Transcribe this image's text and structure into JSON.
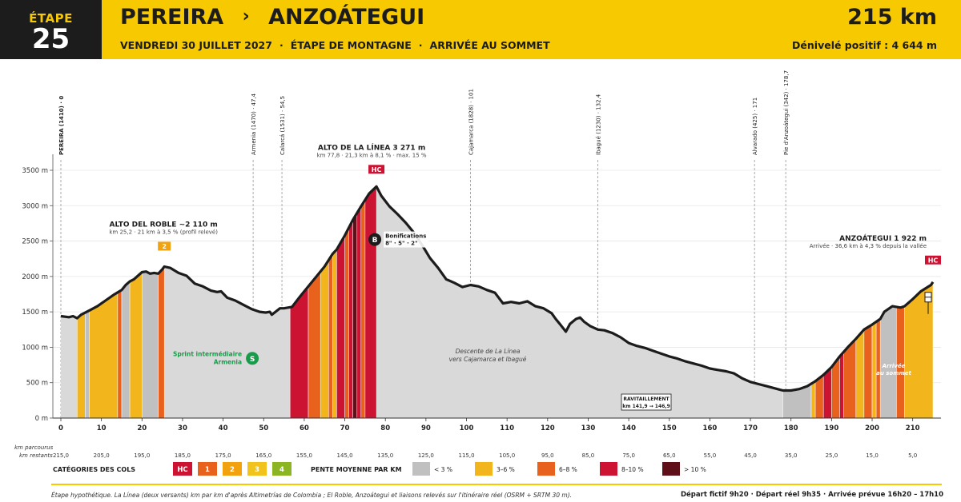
{
  "header": {
    "stage_label": "ÉTAPE",
    "stage_number": "25",
    "start": "PEREIRA",
    "separator": "›",
    "finish": "ANZOÁTEGUI",
    "date": "VENDREDI 30 JUILLET 2027",
    "stage_type": "ÉTAPE DE MONTAGNE",
    "finish_type": "ARRIVÉE AU SOMMET",
    "dot": "·",
    "distance": "215 km",
    "elevation_gain": "Dénivelé positif : 4 644 m"
  },
  "colors": {
    "header_yellow": "#f7c900",
    "dark": "#1c1c1c",
    "profile_fill": "#d9d9d9",
    "grade_lt3": "#c0c0c0",
    "grade_3_6": "#f2b51c",
    "grade_6_8": "#e8621e",
    "grade_8_10": "#cc1332",
    "grade_gt10": "#5e0f18",
    "sprint_green": "#1a9b4b"
  },
  "chart_data": {
    "type": "area",
    "xlim": [
      0,
      215
    ],
    "ylim": [
      0,
      3700
    ],
    "yticks": [
      0,
      500,
      1000,
      1500,
      2000,
      2500,
      3000,
      3500
    ],
    "ytick_labels": [
      "0 m",
      "500 m",
      "1000 m",
      "1500 m",
      "2000 m",
      "2500 m",
      "3000 m",
      "3500 m"
    ],
    "xticks": [
      0,
      10,
      20,
      30,
      40,
      50,
      60,
      70,
      80,
      90,
      100,
      110,
      120,
      130,
      140,
      150,
      160,
      170,
      180,
      190,
      200,
      210
    ],
    "remaining_ticks": [
      "215,0",
      "205,0",
      "195,0",
      "185,0",
      "175,0",
      "165,0",
      "155,0",
      "145,0",
      "135,0",
      "125,0",
      "115,0",
      "105,0",
      "95,0",
      "85,0",
      "75,0",
      "65,0",
      "55,0",
      "45,0",
      "35,0",
      "25,0",
      "15,0",
      "5,0"
    ],
    "row_label_km": "km parcourus",
    "row_label_remaining": "km restants",
    "profile": [
      [
        0,
        1440
      ],
      [
        2,
        1425
      ],
      [
        3,
        1440
      ],
      [
        4,
        1410
      ],
      [
        5,
        1460
      ],
      [
        7,
        1520
      ],
      [
        9,
        1580
      ],
      [
        11,
        1660
      ],
      [
        13,
        1740
      ],
      [
        15,
        1810
      ],
      [
        16,
        1880
      ],
      [
        17,
        1930
      ],
      [
        18,
        1960
      ],
      [
        19,
        2010
      ],
      [
        20,
        2060
      ],
      [
        21,
        2070
      ],
      [
        22,
        2040
      ],
      [
        23,
        2050
      ],
      [
        24,
        2040
      ],
      [
        25,
        2100
      ],
      [
        25.5,
        2140
      ],
      [
        27,
        2120
      ],
      [
        29,
        2050
      ],
      [
        31,
        2010
      ],
      [
        33,
        1900
      ],
      [
        35,
        1860
      ],
      [
        37,
        1800
      ],
      [
        38.5,
        1780
      ],
      [
        39.5,
        1790
      ],
      [
        41,
        1700
      ],
      [
        43,
        1660
      ],
      [
        45,
        1600
      ],
      [
        47,
        1540
      ],
      [
        49,
        1500
      ],
      [
        50.5,
        1490
      ],
      [
        51.5,
        1500
      ],
      [
        52,
        1460
      ],
      [
        54,
        1550
      ],
      [
        55,
        1550
      ],
      [
        57,
        1570
      ],
      [
        59,
        1720
      ],
      [
        62,
        1930
      ],
      [
        65,
        2140
      ],
      [
        67,
        2320
      ],
      [
        68,
        2380
      ],
      [
        70,
        2580
      ],
      [
        72,
        2800
      ],
      [
        74,
        2990
      ],
      [
        76,
        3170
      ],
      [
        77.8,
        3271
      ],
      [
        79,
        3140
      ],
      [
        81,
        2990
      ],
      [
        83,
        2880
      ],
      [
        85,
        2760
      ],
      [
        87,
        2620
      ],
      [
        89,
        2450
      ],
      [
        91,
        2260
      ],
      [
        93,
        2120
      ],
      [
        95,
        1960
      ],
      [
        97,
        1910
      ],
      [
        99,
        1850
      ],
      [
        101,
        1880
      ],
      [
        103,
        1860
      ],
      [
        105,
        1810
      ],
      [
        107,
        1770
      ],
      [
        109,
        1620
      ],
      [
        111,
        1640
      ],
      [
        113,
        1620
      ],
      [
        115,
        1650
      ],
      [
        117,
        1580
      ],
      [
        119,
        1550
      ],
      [
        121,
        1480
      ],
      [
        122,
        1400
      ],
      [
        123,
        1330
      ],
      [
        124.5,
        1220
      ],
      [
        125.5,
        1330
      ],
      [
        127,
        1400
      ],
      [
        128,
        1420
      ],
      [
        129,
        1360
      ],
      [
        130.5,
        1300
      ],
      [
        132.4,
        1250
      ],
      [
        134,
        1240
      ],
      [
        136,
        1200
      ],
      [
        138,
        1140
      ],
      [
        140,
        1060
      ],
      [
        142,
        1020
      ],
      [
        144,
        990
      ],
      [
        146,
        950
      ],
      [
        148,
        910
      ],
      [
        150,
        870
      ],
      [
        152,
        840
      ],
      [
        154,
        800
      ],
      [
        156,
        770
      ],
      [
        158,
        740
      ],
      [
        160,
        700
      ],
      [
        162,
        680
      ],
      [
        164,
        660
      ],
      [
        166,
        630
      ],
      [
        168,
        560
      ],
      [
        170,
        510
      ],
      [
        172,
        480
      ],
      [
        174,
        450
      ],
      [
        176,
        420
      ],
      [
        178,
        390
      ],
      [
        180,
        390
      ],
      [
        182,
        410
      ],
      [
        184,
        450
      ],
      [
        186,
        520
      ],
      [
        188,
        610
      ],
      [
        190,
        720
      ],
      [
        192,
        870
      ],
      [
        194,
        1000
      ],
      [
        196,
        1120
      ],
      [
        198,
        1250
      ],
      [
        200,
        1320
      ],
      [
        202,
        1400
      ],
      [
        203,
        1500
      ],
      [
        205,
        1580
      ],
      [
        207,
        1560
      ],
      [
        208,
        1580
      ],
      [
        210,
        1680
      ],
      [
        212,
        1790
      ],
      [
        214.5,
        1880
      ],
      [
        215,
        1922
      ]
    ],
    "gradient_bands": [
      [
        4,
        6,
        "3-6"
      ],
      [
        6,
        7,
        "<3"
      ],
      [
        7,
        14,
        "3-6"
      ],
      [
        14,
        15,
        "6-8"
      ],
      [
        15,
        17,
        "<3"
      ],
      [
        17,
        20,
        "3-6"
      ],
      [
        20,
        24,
        "<3"
      ],
      [
        24,
        25.5,
        "6-8"
      ],
      [
        56.5,
        61,
        "8-10"
      ],
      [
        61,
        64,
        "6-8"
      ],
      [
        64,
        66,
        "3-6"
      ],
      [
        66,
        67,
        "6-8"
      ],
      [
        67,
        68,
        "3-6"
      ],
      [
        68,
        70,
        "8-10"
      ],
      [
        70,
        71,
        "6-8"
      ],
      [
        71,
        72,
        "8-10"
      ],
      [
        72,
        73,
        "gt10"
      ],
      [
        73,
        74,
        "8-10"
      ],
      [
        74,
        75,
        "6-8"
      ],
      [
        75,
        77.8,
        "8-10"
      ],
      [
        178,
        185,
        "<3"
      ],
      [
        185,
        186,
        "3-6"
      ],
      [
        186,
        188,
        "6-8"
      ],
      [
        188,
        190,
        "8-10"
      ],
      [
        190,
        192,
        "6-8"
      ],
      [
        192,
        193,
        "8-10"
      ],
      [
        193,
        196,
        "6-8"
      ],
      [
        196,
        198,
        "3-6"
      ],
      [
        198,
        200,
        "6-8"
      ],
      [
        200,
        201,
        "3-6"
      ],
      [
        201,
        202,
        "6-8"
      ],
      [
        202,
        206,
        "<3"
      ],
      [
        206,
        208,
        "6-8"
      ],
      [
        208,
        215,
        "3-6"
      ]
    ],
    "waypoints": [
      {
        "km": 0,
        "label": "PEREIRA (1410) · 0"
      },
      {
        "km": 47.4,
        "label": "Armenia (1470) · 47,4"
      },
      {
        "km": 54.5,
        "label": "Calarcá (1531) · 54,5"
      },
      {
        "km": 101,
        "label": "Cajamarca (1828) · 101"
      },
      {
        "km": 132.4,
        "label": "Ibagué (1230) · 132,4"
      },
      {
        "km": 171,
        "label": "Alvarado (425) · 171"
      },
      {
        "km": 178.7,
        "label": "Pie d'Anzoátegui (342) · 178,7"
      }
    ],
    "climbs": [
      {
        "km": 25.5,
        "alt": 2140,
        "category": "2",
        "name": "ALTO DEL ROBLE  ~2 110 m",
        "detail": "km 25,2  ·  21 km à 3,5 % (profil relevé)"
      },
      {
        "km": 77.8,
        "alt": 3271,
        "category": "HC",
        "name": "ALTO DE LA LÍNEA  3 271 m",
        "detail": "km 77,8  ·  21,3 km à 8,1 %  ·  max. 15 %"
      },
      {
        "km": 215,
        "alt": 1922,
        "category": "HC",
        "name": "ANZOÁTEGUI  1 922 m",
        "detail": "Arrivée  ·  36,6 km à 4,3 % depuis la vallée"
      }
    ],
    "bonus": {
      "km": 77.8,
      "alt": 2500,
      "symbol": "B",
      "title": "Bonifications",
      "values": "8\" · 5\" · 2\""
    },
    "sprint": {
      "km": 47.4,
      "alt": 900,
      "symbol": "S",
      "line1": "Sprint intermédiaire",
      "line2": "Armenia"
    },
    "annotations": {
      "descent_line1": "Descente de La Línea",
      "descent_line2": "vers Cajamarca et Ibagué",
      "feed_line1": "RAVITAILLEMENT",
      "feed_line2": "km 141,9 → 146,9",
      "arrival_line1": "Arrivée",
      "arrival_line2": "au sommet"
    }
  },
  "legend": {
    "categories_title": "CATÉGORIES DES COLS",
    "categories": [
      {
        "label": "HC",
        "color": "#cc1332"
      },
      {
        "label": "1",
        "color": "#e8621e"
      },
      {
        "label": "2",
        "color": "#f2a10f"
      },
      {
        "label": "3",
        "color": "#f2c31c"
      },
      {
        "label": "4",
        "color": "#8bb522"
      }
    ],
    "grade_title": "PENTE MOYENNE PAR KM",
    "grades": [
      {
        "label": "< 3 %",
        "color": "#c0c0c0"
      },
      {
        "label": "3–6 %",
        "color": "#f2b51c"
      },
      {
        "label": "6–8 %",
        "color": "#e8621e"
      },
      {
        "label": "8–10 %",
        "color": "#cc1332"
      },
      {
        "label": "> 10 %",
        "color": "#5e0f18"
      }
    ]
  },
  "footer": {
    "note": "Étape hypothétique. La Línea (deux versants) km par km d'après Altimetrías de Colombia ; El Roble, Anzoátegui et liaisons relevés sur l'itinéraire réel (OSRM + SRTM 30 m).",
    "schedule": "Départ fictif 9h20  ·  Départ réel 9h35  ·  Arrivée prévue 16h20 – 17h10"
  }
}
